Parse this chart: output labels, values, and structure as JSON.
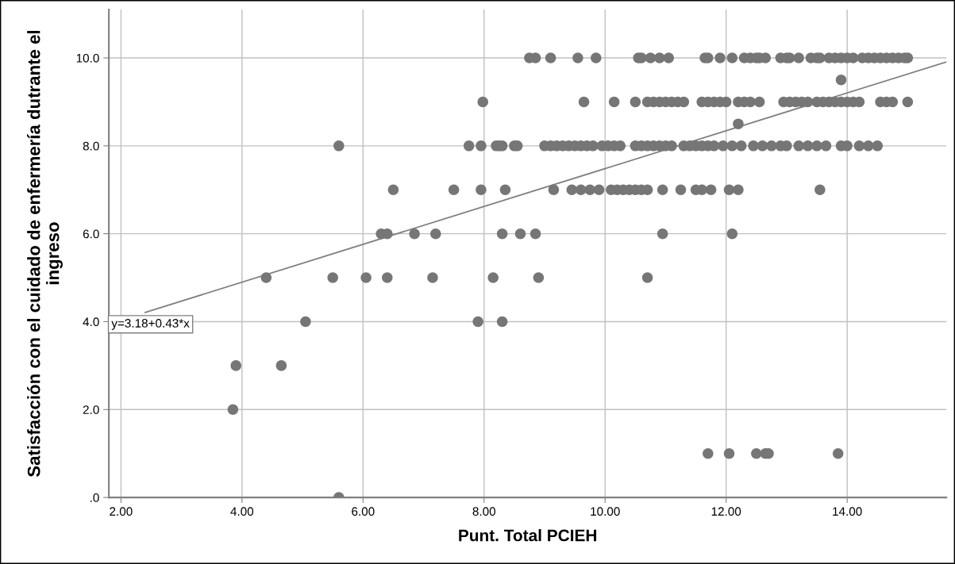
{
  "chart_data": {
    "type": "scatter",
    "xlabel": "Punt. Total PCIEH",
    "ylabel": "Satisfacción con el cuidado de enfermería dutrante el ingreso",
    "annotations": [
      "y=3.18+0.43*x"
    ],
    "xlim": [
      1.8,
      15.64
    ],
    "ylim": [
      0,
      11.1
    ],
    "xticks": [
      {
        "value": 2,
        "label": "2.00"
      },
      {
        "value": 4,
        "label": "4.00"
      },
      {
        "value": 6,
        "label": "6.00"
      },
      {
        "value": 8,
        "label": "8.00"
      },
      {
        "value": 10,
        "label": "10.00"
      },
      {
        "value": 12,
        "label": "12.00"
      },
      {
        "value": 14,
        "label": "14.00"
      }
    ],
    "yticks": [
      {
        "value": 0,
        "label": ".0"
      },
      {
        "value": 2,
        "label": "2.0"
      },
      {
        "value": 4,
        "label": "4.0"
      },
      {
        "value": 6,
        "label": "6.0"
      },
      {
        "value": 8,
        "label": "8.0"
      },
      {
        "value": 10,
        "label": "10.0"
      }
    ],
    "grid": true,
    "series": [
      {
        "marker": "circle",
        "color": "#767676",
        "x": [
          8.75,
          8.85,
          9.1,
          9.55,
          9.85,
          10.55,
          10.6,
          10.75,
          10.9,
          11.05,
          11.65,
          11.7,
          11.9,
          12.1,
          12.3,
          12.4,
          12.5,
          12.55,
          12.65,
          12.9,
          13.0,
          13.05,
          13.2,
          13.4,
          13.5,
          13.55,
          13.7,
          13.8,
          13.9,
          14.0,
          14.1,
          14.25,
          14.35,
          14.45,
          14.55,
          14.65,
          14.75,
          14.85,
          14.95,
          15.0,
          13.9,
          7.98,
          9.65,
          10.15,
          10.5,
          10.7,
          10.8,
          10.9,
          11.0,
          11.1,
          11.2,
          11.3,
          11.6,
          11.7,
          11.8,
          11.9,
          12.0,
          12.2,
          12.3,
          12.4,
          12.55,
          12.95,
          13.05,
          13.15,
          13.25,
          13.35,
          13.5,
          13.6,
          13.7,
          13.8,
          13.9,
          14.0,
          14.1,
          14.2,
          14.55,
          14.65,
          14.75,
          15.0,
          12.2,
          5.6,
          7.75,
          7.95,
          8.2,
          8.25,
          8.3,
          8.5,
          8.55,
          9.0,
          9.1,
          9.2,
          9.3,
          9.4,
          9.5,
          9.6,
          9.7,
          9.8,
          9.95,
          10.05,
          10.15,
          10.25,
          10.5,
          10.6,
          10.7,
          10.8,
          10.9,
          11.0,
          11.1,
          11.3,
          11.4,
          11.5,
          11.6,
          11.7,
          11.8,
          11.95,
          12.1,
          12.25,
          12.45,
          12.6,
          12.75,
          12.9,
          13.0,
          13.2,
          13.35,
          13.5,
          13.65,
          13.9,
          14.0,
          14.2,
          14.35,
          14.5,
          6.5,
          7.5,
          7.95,
          8.35,
          9.15,
          9.45,
          9.6,
          9.75,
          9.9,
          10.1,
          10.2,
          10.3,
          10.4,
          10.5,
          10.6,
          10.7,
          10.95,
          11.25,
          11.5,
          11.6,
          11.75,
          12.05,
          12.2,
          13.55,
          6.3,
          6.4,
          6.85,
          7.2,
          8.3,
          8.6,
          8.85,
          10.95,
          12.1,
          4.4,
          5.5,
          6.05,
          6.4,
          7.15,
          8.15,
          8.9,
          10.7,
          5.05,
          7.9,
          8.3,
          3.9,
          4.65,
          3.85,
          11.7,
          12.05,
          12.5,
          12.65,
          12.7,
          13.85,
          5.6
        ],
        "values": [
          10,
          10,
          10,
          10,
          10,
          10,
          10,
          10,
          10,
          10,
          10,
          10,
          10,
          10,
          10,
          10,
          10,
          10,
          10,
          10,
          10,
          10,
          10,
          10,
          10,
          10,
          10,
          10,
          10,
          10,
          10,
          10,
          10,
          10,
          10,
          10,
          10,
          10,
          10,
          10,
          9.5,
          9,
          9,
          9,
          9,
          9,
          9,
          9,
          9,
          9,
          9,
          9,
          9,
          9,
          9,
          9,
          9,
          9,
          9,
          9,
          9,
          9,
          9,
          9,
          9,
          9,
          9,
          9,
          9,
          9,
          9,
          9,
          9,
          9,
          9,
          9,
          9,
          9,
          8.5,
          8,
          8,
          8,
          8,
          8,
          8,
          8,
          8,
          8,
          8,
          8,
          8,
          8,
          8,
          8,
          8,
          8,
          8,
          8,
          8,
          8,
          8,
          8,
          8,
          8,
          8,
          8,
          8,
          8,
          8,
          8,
          8,
          8,
          8,
          8,
          8,
          8,
          8,
          8,
          8,
          8,
          8,
          8,
          8,
          8,
          8,
          8,
          8,
          8,
          8,
          8,
          7,
          7,
          7,
          7,
          7,
          7,
          7,
          7,
          7,
          7,
          7,
          7,
          7,
          7,
          7,
          7,
          7,
          7,
          7,
          7,
          7,
          7,
          7,
          7,
          6,
          6,
          6,
          6,
          6,
          6,
          6,
          6,
          6,
          5,
          5,
          5,
          5,
          5,
          5,
          5,
          5,
          4,
          4,
          4,
          3,
          3,
          2,
          1,
          1,
          1,
          1,
          1,
          1,
          0
        ]
      },
      {
        "type": "line",
        "color": "#7f7f7f",
        "x": [
          2.4,
          15.64
        ],
        "values": [
          4.21,
          9.91
        ]
      }
    ]
  }
}
